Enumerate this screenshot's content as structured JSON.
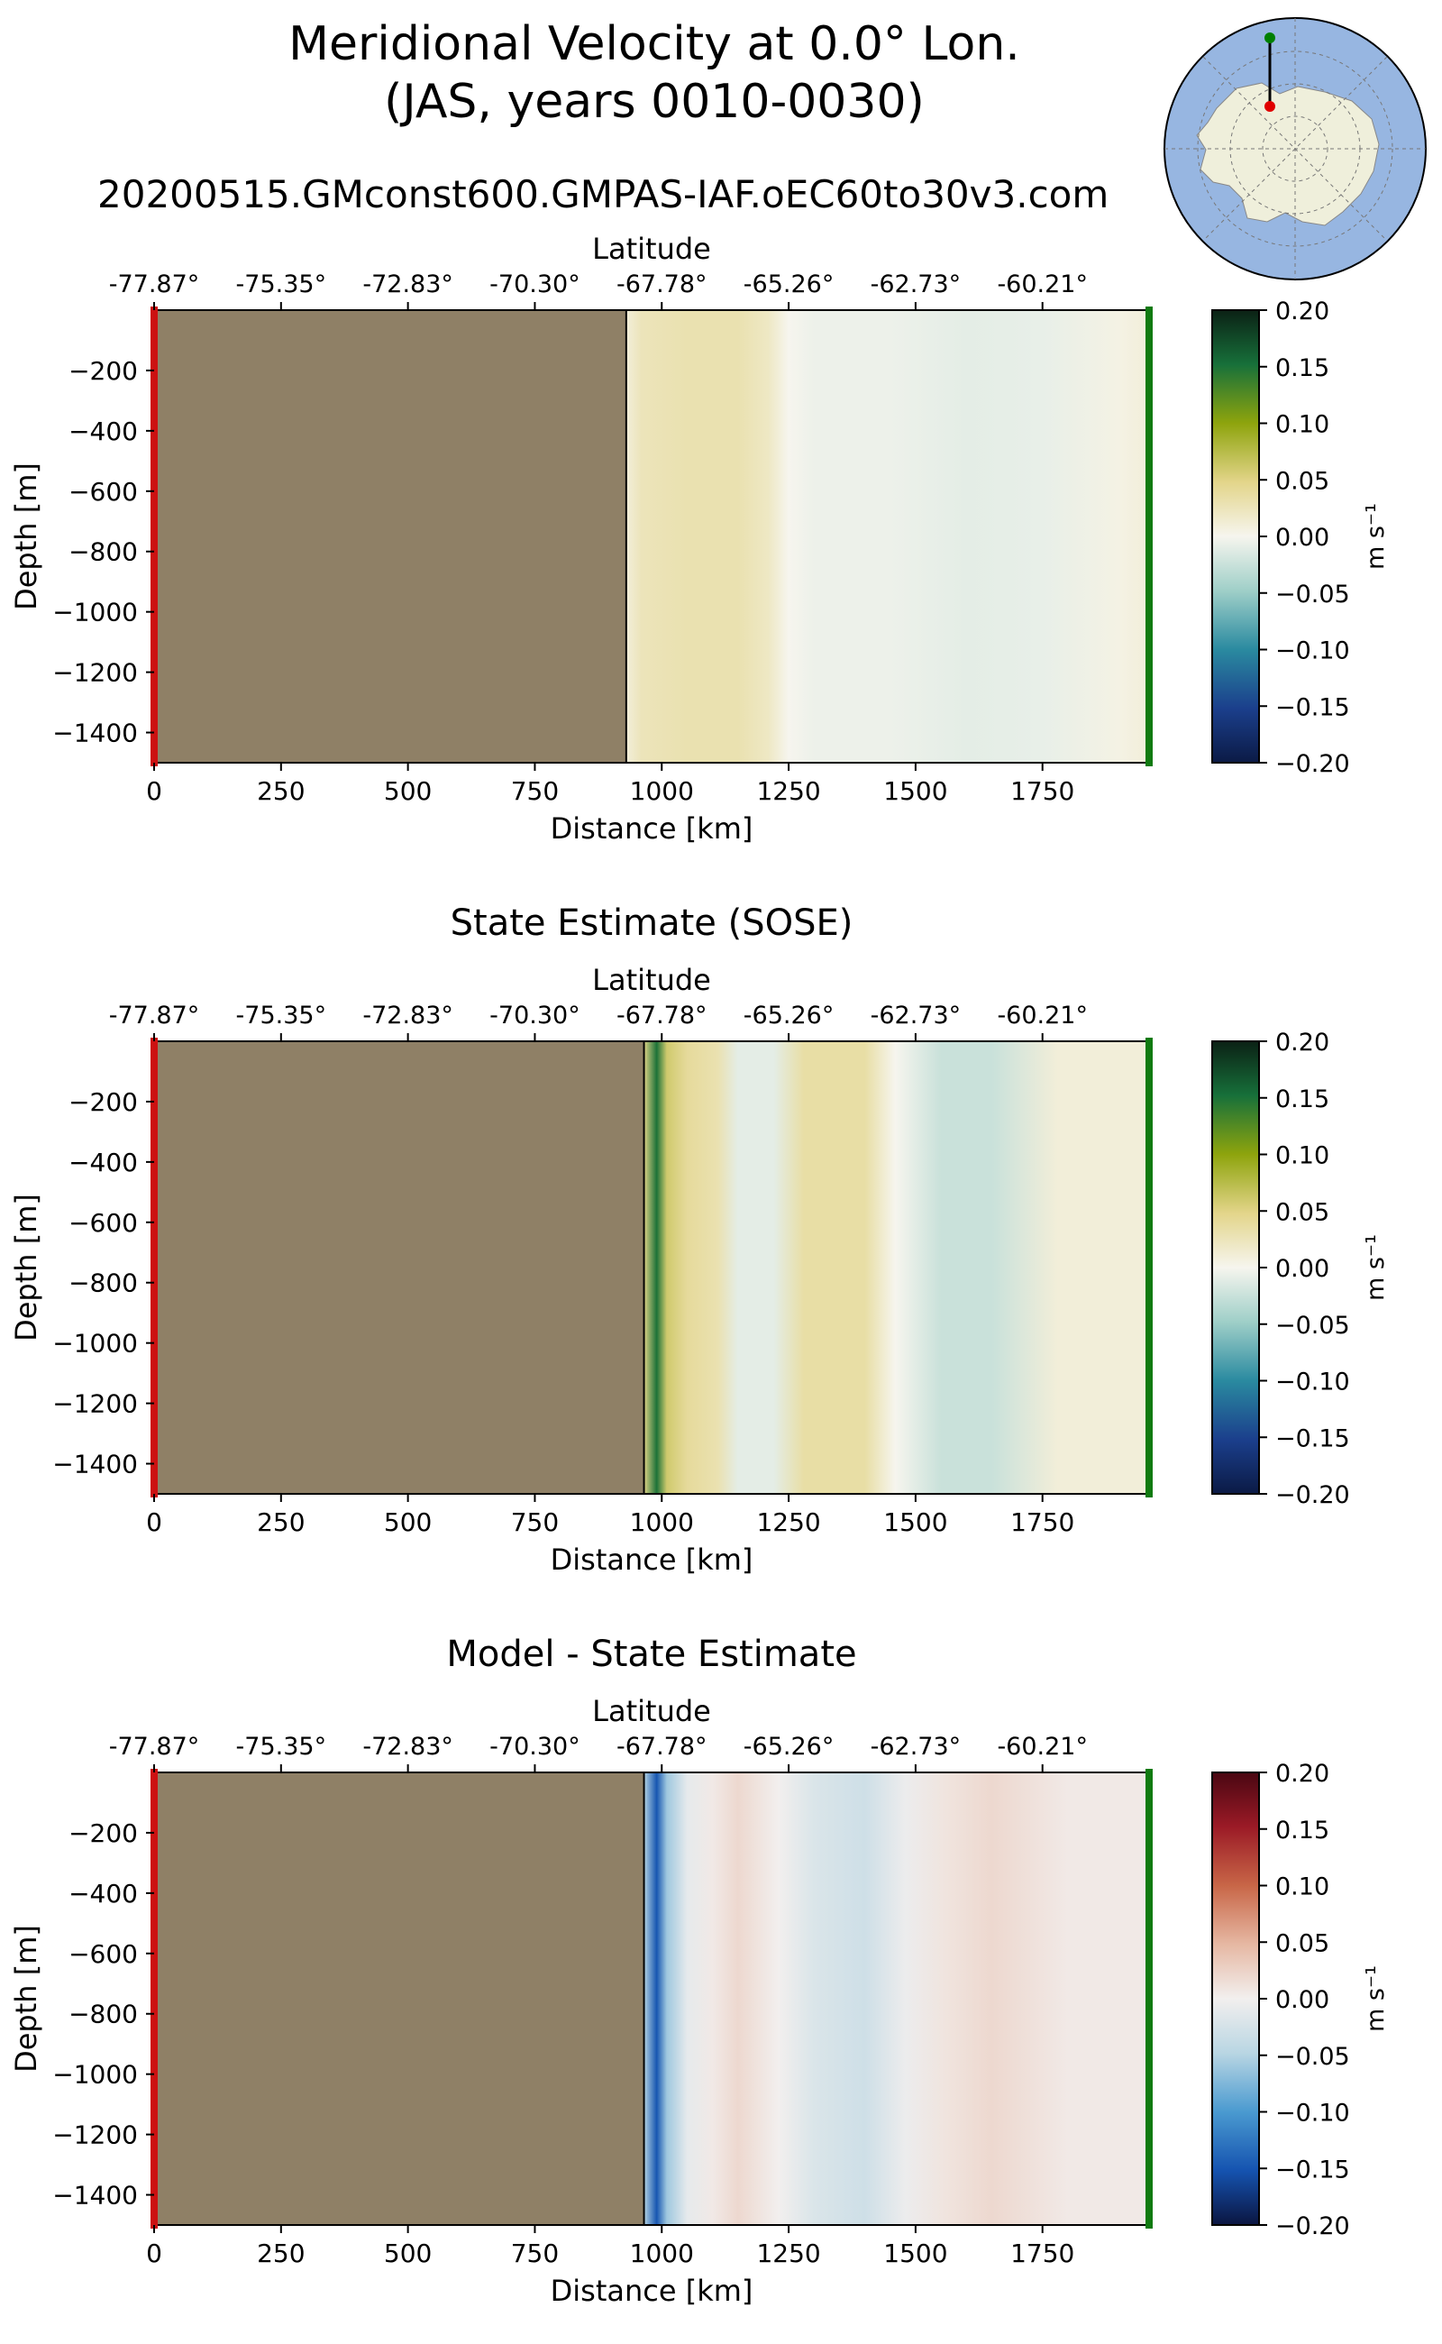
{
  "figure": {
    "title_line1": "Meridional Velocity at 0.0° Lon.",
    "title_line2": "(JAS, years 0010-0030)",
    "run_name": "20200515.GMconst600.GMPAS-IAF.oEC60to30v3.com"
  },
  "locator_map": {
    "description_icon": "antarctica-polar-map-icon",
    "colors": {
      "ocean": "#97b6e1",
      "land": "#efefdb",
      "transect": "#000000",
      "start_marker": "#e00000",
      "end_marker": "#008000"
    }
  },
  "colorbar_unit": "m s⁻¹",
  "chart_data": [
    {
      "type": "heatmap",
      "title": "",
      "xlabel": "Distance [km]",
      "ylabel": "Depth [m]",
      "top_xlabel": "Latitude",
      "xlim": [
        0,
        1960
      ],
      "ylim": [
        -1500,
        0
      ],
      "x_ticks": [
        0,
        250,
        500,
        750,
        1000,
        1250,
        1500,
        1750
      ],
      "y_ticks": [
        -200,
        -400,
        -600,
        -800,
        -1000,
        -1200,
        -1400
      ],
      "latitude_ticks": [
        "-77.87°",
        "-75.35°",
        "-72.83°",
        "-70.30°",
        "-67.78°",
        "-65.26°",
        "-62.73°",
        "-60.21°"
      ],
      "land_end_km": 930,
      "colorbar": {
        "min": -0.2,
        "max": 0.2,
        "ticks": [
          "0.20",
          "0.15",
          "0.10",
          "0.05",
          "0.00",
          "−0.05",
          "−0.10",
          "−0.15",
          "−0.20"
        ],
        "colormap": "green-yellow-white-teal-navy"
      },
      "velocity_profile_ms": [
        {
          "x": 930,
          "v": 0.01
        },
        {
          "x": 960,
          "v": 0.025
        },
        {
          "x": 1050,
          "v": 0.03
        },
        {
          "x": 1150,
          "v": 0.03
        },
        {
          "x": 1210,
          "v": 0.02
        },
        {
          "x": 1250,
          "v": 0.0
        },
        {
          "x": 1300,
          "v": -0.005
        },
        {
          "x": 1450,
          "v": -0.005
        },
        {
          "x": 1600,
          "v": -0.01
        },
        {
          "x": 1750,
          "v": -0.008
        },
        {
          "x": 1900,
          "v": 0.005
        },
        {
          "x": 1960,
          "v": 0.01
        }
      ]
    },
    {
      "type": "heatmap",
      "title": "State Estimate (SOSE)",
      "xlabel": "Distance [km]",
      "ylabel": "Depth [m]",
      "top_xlabel": "Latitude",
      "xlim": [
        0,
        1960
      ],
      "ylim": [
        -1500,
        0
      ],
      "x_ticks": [
        0,
        250,
        500,
        750,
        1000,
        1250,
        1500,
        1750
      ],
      "y_ticks": [
        -200,
        -400,
        -600,
        -800,
        -1000,
        -1200,
        -1400
      ],
      "latitude_ticks": [
        "-77.87°",
        "-75.35°",
        "-72.83°",
        "-70.30°",
        "-67.78°",
        "-65.26°",
        "-62.73°",
        "-60.21°"
      ],
      "land_end_km": 965,
      "colorbar": {
        "min": -0.2,
        "max": 0.2,
        "ticks": [
          "0.20",
          "0.15",
          "0.10",
          "0.05",
          "0.00",
          "−0.05",
          "−0.10",
          "−0.15",
          "−0.20"
        ],
        "colormap": "green-yellow-white-teal-navy"
      },
      "velocity_profile_ms": [
        {
          "x": 965,
          "v": 0.05
        },
        {
          "x": 990,
          "v": 0.15
        },
        {
          "x": 1010,
          "v": 0.06
        },
        {
          "x": 1050,
          "v": 0.04
        },
        {
          "x": 1110,
          "v": 0.03
        },
        {
          "x": 1150,
          "v": -0.01
        },
        {
          "x": 1220,
          "v": -0.01
        },
        {
          "x": 1280,
          "v": 0.035
        },
        {
          "x": 1400,
          "v": 0.035
        },
        {
          "x": 1460,
          "v": 0.0
        },
        {
          "x": 1550,
          "v": -0.025
        },
        {
          "x": 1650,
          "v": -0.025
        },
        {
          "x": 1780,
          "v": 0.01
        },
        {
          "x": 1960,
          "v": 0.01
        }
      ]
    },
    {
      "type": "heatmap",
      "title": "Model - State Estimate",
      "xlabel": "Distance [km]",
      "ylabel": "Depth [m]",
      "top_xlabel": "Latitude",
      "xlim": [
        0,
        1960
      ],
      "ylim": [
        -1500,
        0
      ],
      "x_ticks": [
        0,
        250,
        500,
        750,
        1000,
        1250,
        1500,
        1750
      ],
      "y_ticks": [
        -200,
        -400,
        -600,
        -800,
        -1000,
        -1200,
        -1400
      ],
      "latitude_ticks": [
        "-77.87°",
        "-75.35°",
        "-72.83°",
        "-70.30°",
        "-67.78°",
        "-65.26°",
        "-62.73°",
        "-60.21°"
      ],
      "land_end_km": 965,
      "colorbar": {
        "min": -0.2,
        "max": 0.2,
        "ticks": [
          "0.20",
          "0.15",
          "0.10",
          "0.05",
          "0.00",
          "−0.05",
          "−0.10",
          "−0.15",
          "−0.20"
        ],
        "colormap": "red-white-blue"
      },
      "velocity_profile_ms": [
        {
          "x": 965,
          "v": -0.05
        },
        {
          "x": 990,
          "v": -0.15
        },
        {
          "x": 1010,
          "v": -0.06
        },
        {
          "x": 1050,
          "v": -0.01
        },
        {
          "x": 1100,
          "v": 0.005
        },
        {
          "x": 1150,
          "v": 0.02
        },
        {
          "x": 1230,
          "v": 0.0
        },
        {
          "x": 1300,
          "v": -0.02
        },
        {
          "x": 1400,
          "v": -0.03
        },
        {
          "x": 1480,
          "v": -0.005
        },
        {
          "x": 1560,
          "v": 0.01
        },
        {
          "x": 1650,
          "v": 0.02
        },
        {
          "x": 1800,
          "v": 0.005
        },
        {
          "x": 1960,
          "v": 0.005
        }
      ]
    }
  ]
}
